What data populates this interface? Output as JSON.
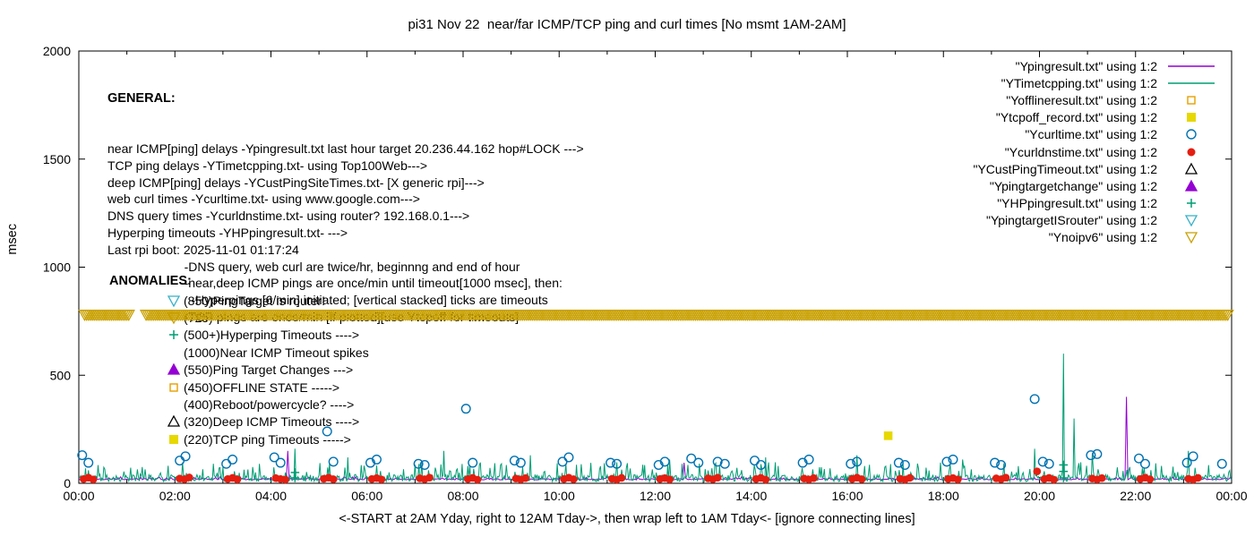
{
  "chart_data": {
    "type": "scatter",
    "title": "pi31 Nov 22  near/far ICMP/TCP ping and curl times [No msmt 1AM-2AM]",
    "xlabel": "<-START at 2AM Yday, right to 12AM Tday->, then wrap left to 1AM Tday<- [ignore connecting lines]",
    "ylabel": "msec",
    "x_range_hours": [
      0,
      24
    ],
    "ylim": [
      0,
      2000
    ],
    "grid": false,
    "legend_position": "top-right",
    "x_ticks": [
      "00:00",
      "02:00",
      "04:00",
      "06:00",
      "08:00",
      "10:00",
      "12:00",
      "14:00",
      "16:00",
      "18:00",
      "20:00",
      "22:00",
      "00:00"
    ],
    "y_ticks": [
      0,
      500,
      1000,
      1500,
      2000
    ],
    "series": [
      {
        "name": "Ypingresult",
        "label": "\"Ypingresult.txt\" using 1:2",
        "type": "line",
        "color": "#9400d3",
        "seed": 5,
        "step": 0.03,
        "baseline": 16,
        "noise": 14,
        "spikes": [
          [
            4.35,
            150
          ],
          [
            12.6,
            95
          ],
          [
            21.8,
            400
          ]
        ]
      },
      {
        "name": "YTimetcpping",
        "label": "\"YTimetcpping.txt\" using 1:2",
        "type": "line",
        "color": "#009e73",
        "seed": 11,
        "step": 0.02,
        "baseline": 8,
        "noise": 90,
        "spikes": [
          [
            4.5,
            160
          ],
          [
            5.6,
            120
          ],
          [
            7.6,
            150
          ],
          [
            9.4,
            130
          ],
          [
            12.3,
            110
          ],
          [
            14.3,
            120
          ],
          [
            16.2,
            130
          ],
          [
            18.4,
            110
          ],
          [
            19.9,
            160
          ],
          [
            20.5,
            600
          ],
          [
            20.72,
            300
          ],
          [
            21.1,
            140
          ],
          [
            23.1,
            150
          ]
        ]
      },
      {
        "name": "Yofflineresult",
        "label": "\"Yofflineresult.txt\" using 1:2",
        "type": "points",
        "marker": "square-open",
        "color": "#e69f00",
        "points": []
      },
      {
        "name": "Ytcpoff_record",
        "label": "\"Ytcpoff_record.txt\" using 1:2",
        "type": "points",
        "marker": "square-filled",
        "color": "#e6d800",
        "points": [
          [
            16.85,
            220
          ]
        ]
      },
      {
        "name": "Ycurltime",
        "label": "\"Ycurltime.txt\" using 1:2",
        "type": "points",
        "marker": "circle-open",
        "color": "#0072b2",
        "points": [
          [
            0.07,
            130
          ],
          [
            0.2,
            95
          ],
          [
            2.1,
            105
          ],
          [
            2.22,
            125
          ],
          [
            3.07,
            90
          ],
          [
            3.2,
            110
          ],
          [
            4.07,
            120
          ],
          [
            4.2,
            95
          ],
          [
            5.17,
            240
          ],
          [
            5.3,
            100
          ],
          [
            6.07,
            95
          ],
          [
            6.2,
            110
          ],
          [
            7.07,
            90
          ],
          [
            7.2,
            85
          ],
          [
            8.06,
            345
          ],
          [
            8.2,
            95
          ],
          [
            9.07,
            105
          ],
          [
            9.2,
            95
          ],
          [
            10.07,
            100
          ],
          [
            10.2,
            120
          ],
          [
            11.07,
            95
          ],
          [
            11.2,
            90
          ],
          [
            12.07,
            85
          ],
          [
            12.2,
            100
          ],
          [
            12.75,
            115
          ],
          [
            12.9,
            95
          ],
          [
            13.3,
            100
          ],
          [
            13.45,
            90
          ],
          [
            14.07,
            105
          ],
          [
            14.2,
            85
          ],
          [
            15.07,
            95
          ],
          [
            15.2,
            110
          ],
          [
            16.07,
            90
          ],
          [
            16.2,
            100
          ],
          [
            17.07,
            95
          ],
          [
            17.2,
            85
          ],
          [
            18.07,
            100
          ],
          [
            18.2,
            110
          ],
          [
            19.07,
            95
          ],
          [
            19.2,
            85
          ],
          [
            19.9,
            390
          ],
          [
            20.07,
            100
          ],
          [
            20.2,
            90
          ],
          [
            21.07,
            130
          ],
          [
            21.2,
            135
          ],
          [
            22.07,
            115
          ],
          [
            22.2,
            90
          ],
          [
            23.07,
            95
          ],
          [
            23.2,
            125
          ],
          [
            23.8,
            90
          ]
        ]
      },
      {
        "name": "Ycurldnstime",
        "label": "\"Ycurldnstime.txt\" using 1:2",
        "type": "points",
        "marker": "circle-filled",
        "color": "#e51e10",
        "points": [
          [
            0.1,
            20
          ],
          [
            0.2,
            26
          ],
          [
            0.3,
            18
          ],
          [
            2.1,
            22
          ],
          [
            2.2,
            19
          ],
          [
            2.3,
            27
          ],
          [
            3.1,
            20
          ],
          [
            3.2,
            25
          ],
          [
            3.3,
            18
          ],
          [
            4.1,
            24
          ],
          [
            4.2,
            20
          ],
          [
            4.3,
            17
          ],
          [
            5.1,
            21
          ],
          [
            5.2,
            26
          ],
          [
            5.3,
            19
          ],
          [
            6.1,
            20
          ],
          [
            6.2,
            24
          ],
          [
            6.3,
            18
          ],
          [
            7.1,
            23
          ],
          [
            7.2,
            19
          ],
          [
            7.3,
            26
          ],
          [
            8.1,
            20
          ],
          [
            8.2,
            25
          ],
          [
            8.3,
            17
          ],
          [
            9.1,
            22
          ],
          [
            9.2,
            18
          ],
          [
            9.3,
            24
          ],
          [
            10.1,
            20
          ],
          [
            10.2,
            26
          ],
          [
            10.3,
            19
          ],
          [
            11.1,
            21
          ],
          [
            11.2,
            17
          ],
          [
            11.3,
            25
          ],
          [
            12.1,
            20
          ],
          [
            12.2,
            24
          ],
          [
            12.3,
            18
          ],
          [
            13.1,
            23
          ],
          [
            13.2,
            19
          ],
          [
            13.3,
            26
          ],
          [
            14.1,
            20
          ],
          [
            14.2,
            25
          ],
          [
            14.3,
            17
          ],
          [
            15.1,
            22
          ],
          [
            15.2,
            18
          ],
          [
            15.3,
            24
          ],
          [
            16.1,
            20
          ],
          [
            16.2,
            26
          ],
          [
            16.3,
            19
          ],
          [
            17.1,
            21
          ],
          [
            17.2,
            17
          ],
          [
            17.3,
            25
          ],
          [
            18.1,
            20
          ],
          [
            18.2,
            24
          ],
          [
            18.3,
            18
          ],
          [
            19.1,
            23
          ],
          [
            19.2,
            19
          ],
          [
            19.3,
            26
          ],
          [
            19.95,
            55
          ],
          [
            20.1,
            20
          ],
          [
            20.2,
            25
          ],
          [
            20.3,
            17
          ],
          [
            21.1,
            22
          ],
          [
            21.2,
            18
          ],
          [
            21.3,
            24
          ],
          [
            22.1,
            20
          ],
          [
            22.2,
            26
          ],
          [
            22.3,
            19
          ],
          [
            23.1,
            21
          ],
          [
            23.2,
            17
          ],
          [
            23.3,
            25
          ]
        ]
      },
      {
        "name": "YCustPingTimeout",
        "label": "\"YCustPingTimeout.txt\" using 1:2",
        "type": "points",
        "marker": "triangle-up-open",
        "color": "#000000",
        "points": []
      },
      {
        "name": "Ypingtargetchange",
        "label": "\"Ypingtargetchange\" using 1:2",
        "type": "points",
        "marker": "triangle-up-filled",
        "color": "#9400d3",
        "points": []
      },
      {
        "name": "YHPpingresult",
        "label": "\"YHPpingresult.txt\" using 1:2",
        "type": "points",
        "marker": "plus",
        "color": "#009e73",
        "points": [
          [
            4.5,
            25
          ],
          [
            4.5,
            50
          ],
          [
            20.5,
            25
          ],
          [
            20.5,
            55
          ],
          [
            20.5,
            85
          ]
        ]
      },
      {
        "name": "YpingtargetISrouter",
        "label": "\"YpingtargetISrouter\" using 1:2",
        "type": "points",
        "marker": "triangle-down-open",
        "color": "#35b0c8",
        "points": []
      },
      {
        "name": "Ynoipv6",
        "label": "\"Ynoipv6\" using 1:2",
        "type": "band",
        "marker": "triangle-down-open",
        "color": "#c8a000",
        "band": {
          "y": 780,
          "x_start": 0.12,
          "x_end": 23.93,
          "gap": [
            1.05,
            1.4
          ],
          "step": 0.04
        }
      }
    ]
  },
  "notes": {
    "heading": "GENERAL:",
    "lines": [
      "near ICMP[ping] delays -Ypingresult.txt last hour target 20.236.44.162 hop#LOCK --->",
      "TCP ping delays -YTimetcpping.txt- using Top100Web--->",
      "deep ICMP[ping] delays -YCustPingSiteTimes.txt- [X generic rpi]--->",
      "web curl times -Ycurltime.txt- using www.google.com--->",
      "DNS query times -Ycurldnstime.txt- using router? 192.168.0.1--->",
      "Hyperping timeouts -YHPpingresult.txt- --->",
      "Last rpi boot: 2025-11-01 01:17:24",
      "                      -DNS query, web curl are twice/hr, beginnng and end of hour",
      "                      -near,deep ICMP pings are once/min until timeout[1000 msec], then:",
      "                        -Hyperpings [6/min] initiated; [vertical stacked] ticks are timeouts",
      "                      -TCP pings are once/min [if plotted][use Ytcpoff for timeouts]"
    ]
  },
  "anomalies": {
    "heading": "ANOMALIES:",
    "items": [
      {
        "marker": "triangle-down-open",
        "color": "#35b0c8",
        "text": "(850)PingTarget is router!"
      },
      {
        "marker": "triangle-down-open",
        "color": "#c8a000",
        "text": "(725)"
      },
      {
        "marker": "plus",
        "color": "#009e73",
        "text": "(500+)Hyperping Timeouts ---->"
      },
      {
        "marker": "none",
        "color": "#000000",
        "text": "(1000)Near ICMP Timeout spikes"
      },
      {
        "marker": "triangle-up-filled",
        "color": "#9400d3",
        "text": "(550)Ping Target Changes --->"
      },
      {
        "marker": "square-open",
        "color": "#e69f00",
        "text": "(450)OFFLINE STATE ----->"
      },
      {
        "marker": "none",
        "color": "#000000",
        "text": "(400)Reboot/powercycle? ---->"
      },
      {
        "marker": "triangle-up-open",
        "color": "#000000",
        "text": "(320)Deep ICMP Timeouts ---->"
      },
      {
        "marker": "square-filled",
        "color": "#e6d800",
        "text": "(220)TCP ping Timeouts ----->"
      }
    ]
  }
}
